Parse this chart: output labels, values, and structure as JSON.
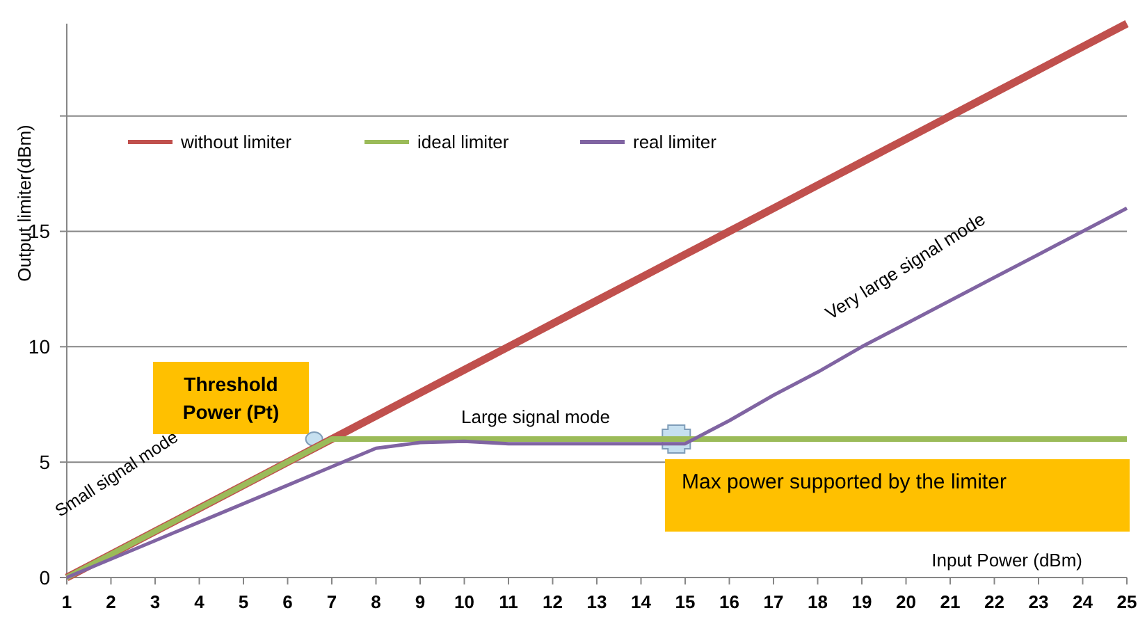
{
  "chart_data": {
    "type": "line",
    "ylabel": "Output limiter(dBm)",
    "xlabel": "Input Power (dBm)",
    "x": [
      1,
      2,
      3,
      4,
      5,
      6,
      7,
      8,
      9,
      10,
      11,
      12,
      13,
      14,
      15,
      16,
      17,
      18,
      19,
      20,
      21,
      22,
      23,
      24,
      25
    ],
    "xlim": [
      1,
      25
    ],
    "xticks": [
      1,
      2,
      3,
      4,
      5,
      6,
      7,
      8,
      9,
      10,
      11,
      12,
      13,
      14,
      15,
      16,
      17,
      18,
      19,
      20,
      21,
      22,
      23,
      24,
      25
    ],
    "ylim": [
      0,
      24
    ],
    "yticks": [
      0,
      5,
      10,
      15,
      {
        "value": 20,
        "label": null
      }
    ],
    "grid": "y",
    "legend": "top left",
    "marker": "none",
    "line_style": "solid",
    "series": [
      {
        "name": "without limiter",
        "color": "#c0504d",
        "values": [
          0,
          1,
          2,
          3,
          4,
          5,
          6,
          7,
          8,
          9,
          10,
          11,
          12,
          13,
          14,
          15,
          16,
          17,
          18,
          19,
          20,
          21,
          22,
          23,
          24
        ]
      },
      {
        "name": "ideal limiter",
        "color": "#9bbb59",
        "values": [
          0,
          1,
          2,
          3,
          4,
          5,
          6,
          6,
          6,
          6,
          6,
          6,
          6,
          6,
          6,
          6,
          6,
          6,
          6,
          6,
          6,
          6,
          6,
          6,
          6
        ]
      },
      {
        "name": "real limiter",
        "color": "#8064a2",
        "values": [
          0,
          0.8,
          1.6,
          2.4,
          3.2,
          4.0,
          4.8,
          5.6,
          5.85,
          5.9,
          5.8,
          5.8,
          5.8,
          5.8,
          5.8,
          6.8,
          7.9,
          8.9,
          10,
          11,
          12,
          13,
          14,
          15,
          16
        ]
      }
    ],
    "annotations": [
      {
        "text": "Threshold Power (Pt)",
        "x": 6.6,
        "y": 6
      },
      {
        "text": "Large signal mode"
      },
      {
        "text": "Small signal mode"
      },
      {
        "text": "Very large signal mode"
      },
      {
        "text": "Max power supported by the limiter",
        "x": 14.8,
        "y": 6
      }
    ]
  }
}
